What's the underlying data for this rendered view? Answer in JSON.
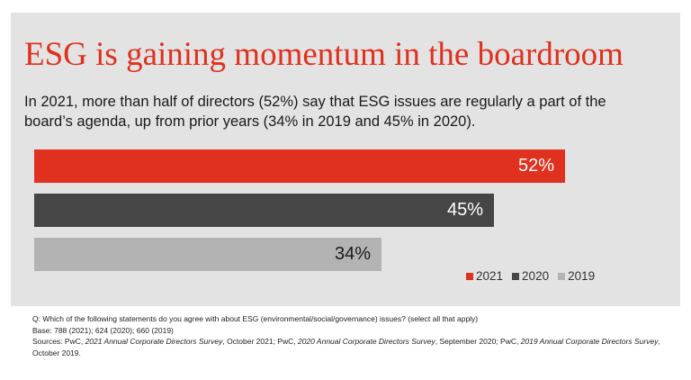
{
  "chart_data": {
    "type": "bar",
    "orientation": "horizontal",
    "title": "ESG is gaining momentum in the boardroom",
    "subtitle": "In 2021, more than half of directors (52%) say that ESG issues are regularly a part of the board’s agenda, up from prior years (34% in 2019 and 45% in 2020).",
    "categories": [
      "2021",
      "2020",
      "2019"
    ],
    "values": [
      52,
      45,
      34
    ],
    "value_labels": [
      "52%",
      "45%",
      "34%"
    ],
    "colors": [
      "#e0301e",
      "#464646",
      "#b3b3b3"
    ],
    "label_colors": [
      "#ffffff",
      "#ffffff",
      "#1a1a1a"
    ],
    "xlim": [
      0,
      100
    ],
    "grid": false,
    "legend": "bottom-right",
    "legend_entries": [
      "2021",
      "2020",
      "2019"
    ]
  },
  "footer": {
    "question": "Q: Which of the following statements do you agree with about ESG (environmental/social/governance) issues? (select all that apply)",
    "base": "Base: 788 (2021); 624 (2020); 660 (2019)",
    "sources": [
      {
        "text": "Sources: PwC, ",
        "italic": false
      },
      {
        "text": "2021 Annual Corporate Directors Survey",
        "italic": true
      },
      {
        "text": ", October 2021; PwC, ",
        "italic": false
      },
      {
        "text": "2020 Annual Corporate Directors Survey",
        "italic": true
      },
      {
        "text": ", September 2020; PwC, ",
        "italic": false
      },
      {
        "text": "2019 Annual Corporate Directors Survey",
        "italic": true
      },
      {
        "text": ", October 2019.",
        "italic": false
      }
    ]
  }
}
